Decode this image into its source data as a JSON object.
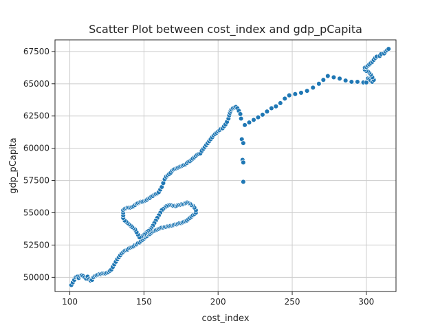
{
  "chart_data": {
    "type": "scatter",
    "title": "Scatter Plot between cost_index and gdp_pCapita",
    "xlabel": "cost_index",
    "ylabel": "gdp_pCapita",
    "xlim": [
      90,
      320
    ],
    "ylim": [
      48900,
      68400
    ],
    "xticks": [
      100,
      150,
      200,
      250,
      300
    ],
    "yticks": [
      50000,
      52500,
      55000,
      57500,
      60000,
      62500,
      65000,
      67500
    ],
    "grid": true,
    "color": "#1f77b4",
    "points": [
      [
        101,
        49400
      ],
      [
        102,
        49600
      ],
      [
        103,
        49800
      ],
      [
        104,
        50000
      ],
      [
        105,
        50050
      ],
      [
        106,
        49950
      ],
      [
        107,
        50100
      ],
      [
        108,
        50150
      ],
      [
        109,
        50100
      ],
      [
        110,
        50000
      ],
      [
        111,
        49900
      ],
      [
        112,
        50050
      ],
      [
        113,
        49850
      ],
      [
        114,
        49750
      ],
      [
        115,
        49800
      ],
      [
        116,
        50000
      ],
      [
        117,
        50100
      ],
      [
        118,
        50150
      ],
      [
        119,
        50200
      ],
      [
        120,
        50250
      ],
      [
        121,
        50250
      ],
      [
        122,
        50300
      ],
      [
        123,
        50300
      ],
      [
        124,
        50300
      ],
      [
        125,
        50350
      ],
      [
        126,
        50400
      ],
      [
        127,
        50500
      ],
      [
        128,
        50600
      ],
      [
        129,
        50800
      ],
      [
        130,
        51000
      ],
      [
        131,
        51200
      ],
      [
        132,
        51400
      ],
      [
        133,
        51550
      ],
      [
        134,
        51700
      ],
      [
        135,
        51850
      ],
      [
        136,
        51950
      ],
      [
        137,
        52050
      ],
      [
        138,
        52100
      ],
      [
        139,
        52150
      ],
      [
        140,
        52250
      ],
      [
        141,
        52300
      ],
      [
        142,
        52350
      ],
      [
        143,
        52400
      ],
      [
        144,
        52500
      ],
      [
        145,
        52550
      ],
      [
        146,
        52650
      ],
      [
        147,
        52700
      ],
      [
        148,
        52800
      ],
      [
        149,
        52900
      ],
      [
        150,
        53000
      ],
      [
        151,
        53100
      ],
      [
        152,
        53200
      ],
      [
        153,
        53300
      ],
      [
        154,
        53350
      ],
      [
        155,
        53450
      ],
      [
        156,
        53550
      ],
      [
        157,
        53600
      ],
      [
        158,
        53650
      ],
      [
        159,
        53700
      ],
      [
        160,
        53750
      ],
      [
        161,
        53800
      ],
      [
        162,
        53850
      ],
      [
        163,
        53850
      ],
      [
        164,
        53900
      ],
      [
        165,
        53900
      ],
      [
        166,
        53950
      ],
      [
        167,
        53950
      ],
      [
        168,
        54000
      ],
      [
        169,
        54000
      ],
      [
        170,
        54050
      ],
      [
        171,
        54100
      ],
      [
        172,
        54100
      ],
      [
        173,
        54150
      ],
      [
        174,
        54200
      ],
      [
        175,
        54200
      ],
      [
        176,
        54250
      ],
      [
        177,
        54300
      ],
      [
        178,
        54350
      ],
      [
        179,
        54400
      ],
      [
        180,
        54500
      ],
      [
        181,
        54600
      ],
      [
        182,
        54700
      ],
      [
        183,
        54800
      ],
      [
        184,
        54900
      ],
      [
        185,
        55000
      ],
      [
        185,
        55200
      ],
      [
        184,
        55400
      ],
      [
        183,
        55550
      ],
      [
        182,
        55600
      ],
      [
        181,
        55700
      ],
      [
        180,
        55750
      ],
      [
        179,
        55800
      ],
      [
        178,
        55750
      ],
      [
        177,
        55700
      ],
      [
        176,
        55650
      ],
      [
        175,
        55650
      ],
      [
        174,
        55600
      ],
      [
        173,
        55600
      ],
      [
        172,
        55550
      ],
      [
        171,
        55500
      ],
      [
        170,
        55550
      ],
      [
        169,
        55550
      ],
      [
        168,
        55600
      ],
      [
        167,
        55600
      ],
      [
        166,
        55550
      ],
      [
        165,
        55500
      ],
      [
        164,
        55400
      ],
      [
        163,
        55300
      ],
      [
        162,
        55200
      ],
      [
        161,
        55000
      ],
      [
        160,
        54800
      ],
      [
        159,
        54600
      ],
      [
        158,
        54400
      ],
      [
        157,
        54200
      ],
      [
        156,
        54000
      ],
      [
        155,
        53800
      ],
      [
        154,
        53700
      ],
      [
        153,
        53600
      ],
      [
        152,
        53500
      ],
      [
        151,
        53400
      ],
      [
        150,
        53300
      ],
      [
        149,
        53200
      ],
      [
        148,
        53150
      ],
      [
        147,
        53100
      ],
      [
        146,
        53300
      ],
      [
        145,
        53500
      ],
      [
        144,
        53700
      ],
      [
        143,
        53800
      ],
      [
        142,
        53900
      ],
      [
        141,
        54000
      ],
      [
        140,
        54100
      ],
      [
        139,
        54200
      ],
      [
        138,
        54300
      ],
      [
        137,
        54400
      ],
      [
        136,
        54600
      ],
      [
        136,
        54800
      ],
      [
        136,
        55000
      ],
      [
        136,
        55200
      ],
      [
        137,
        55300
      ],
      [
        138,
        55350
      ],
      [
        139,
        55400
      ],
      [
        140,
        55400
      ],
      [
        141,
        55400
      ],
      [
        142,
        55450
      ],
      [
        143,
        55500
      ],
      [
        144,
        55600
      ],
      [
        145,
        55700
      ],
      [
        146,
        55750
      ],
      [
        147,
        55800
      ],
      [
        148,
        55850
      ],
      [
        149,
        55850
      ],
      [
        150,
        55900
      ],
      [
        151,
        55950
      ],
      [
        152,
        56000
      ],
      [
        153,
        56100
      ],
      [
        154,
        56150
      ],
      [
        155,
        56250
      ],
      [
        156,
        56300
      ],
      [
        157,
        56400
      ],
      [
        158,
        56450
      ],
      [
        159,
        56500
      ],
      [
        160,
        56600
      ],
      [
        161,
        56800
      ],
      [
        162,
        57000
      ],
      [
        163,
        57300
      ],
      [
        164,
        57600
      ],
      [
        165,
        57800
      ],
      [
        166,
        57900
      ],
      [
        167,
        58000
      ],
      [
        168,
        58100
      ],
      [
        169,
        58250
      ],
      [
        170,
        58350
      ],
      [
        171,
        58400
      ],
      [
        172,
        58450
      ],
      [
        173,
        58500
      ],
      [
        174,
        58550
      ],
      [
        175,
        58600
      ],
      [
        176,
        58650
      ],
      [
        177,
        58700
      ],
      [
        178,
        58750
      ],
      [
        179,
        58850
      ],
      [
        180,
        58950
      ],
      [
        181,
        59000
      ],
      [
        182,
        59100
      ],
      [
        183,
        59200
      ],
      [
        184,
        59300
      ],
      [
        185,
        59400
      ],
      [
        186,
        59500
      ],
      [
        187,
        59550
      ],
      [
        188,
        59600
      ],
      [
        189,
        59800
      ],
      [
        190,
        59950
      ],
      [
        191,
        60100
      ],
      [
        192,
        60250
      ],
      [
        193,
        60400
      ],
      [
        194,
        60550
      ],
      [
        195,
        60700
      ],
      [
        196,
        60850
      ],
      [
        197,
        61000
      ],
      [
        198,
        61100
      ],
      [
        199,
        61200
      ],
      [
        200,
        61300
      ],
      [
        201,
        61400
      ],
      [
        202,
        61500
      ],
      [
        203,
        61550
      ],
      [
        204,
        61700
      ],
      [
        205,
        61850
      ],
      [
        206,
        62050
      ],
      [
        207,
        62300
      ],
      [
        207.5,
        62550
      ],
      [
        208,
        62750
      ],
      [
        208.5,
        62900
      ],
      [
        209,
        63000
      ],
      [
        210,
        63100
      ],
      [
        211,
        63150
      ],
      [
        212,
        63200
      ],
      [
        213,
        63100
      ],
      [
        214,
        62900
      ],
      [
        215,
        62650
      ],
      [
        215.5,
        62300
      ],
      [
        216,
        60700
      ],
      [
        217,
        60400
      ],
      [
        216.5,
        59100
      ],
      [
        217,
        58900
      ],
      [
        217,
        57400
      ],
      [
        218,
        61800
      ],
      [
        221,
        62000
      ],
      [
        224,
        62200
      ],
      [
        227,
        62400
      ],
      [
        230,
        62600
      ],
      [
        233,
        62850
      ],
      [
        236,
        63100
      ],
      [
        239,
        63250
      ],
      [
        242,
        63500
      ],
      [
        245,
        63850
      ],
      [
        248,
        64100
      ],
      [
        252,
        64200
      ],
      [
        256,
        64300
      ],
      [
        260,
        64450
      ],
      [
        264,
        64700
      ],
      [
        268,
        65000
      ],
      [
        271,
        65300
      ],
      [
        274,
        65600
      ],
      [
        278,
        65500
      ],
      [
        282,
        65400
      ],
      [
        286,
        65250
      ],
      [
        290,
        65150
      ],
      [
        294,
        65150
      ],
      [
        298,
        65100
      ],
      [
        300,
        65100
      ],
      [
        301,
        65400
      ],
      [
        302,
        65350
      ],
      [
        303,
        65250
      ],
      [
        304,
        65150
      ],
      [
        305,
        65300
      ],
      [
        304,
        65500
      ],
      [
        303,
        65700
      ],
      [
        302,
        65850
      ],
      [
        301,
        65950
      ],
      [
        300,
        66000
      ],
      [
        299,
        66100
      ],
      [
        299,
        66250
      ],
      [
        300,
        66300
      ],
      [
        301,
        66400
      ],
      [
        302,
        66500
      ],
      [
        303,
        66600
      ],
      [
        304,
        66700
      ],
      [
        305,
        66850
      ],
      [
        306,
        67000
      ],
      [
        307,
        67100
      ],
      [
        309,
        67150
      ],
      [
        310,
        67300
      ],
      [
        312,
        67350
      ],
      [
        313,
        67500
      ],
      [
        314,
        67600
      ],
      [
        315,
        67700
      ]
    ]
  }
}
